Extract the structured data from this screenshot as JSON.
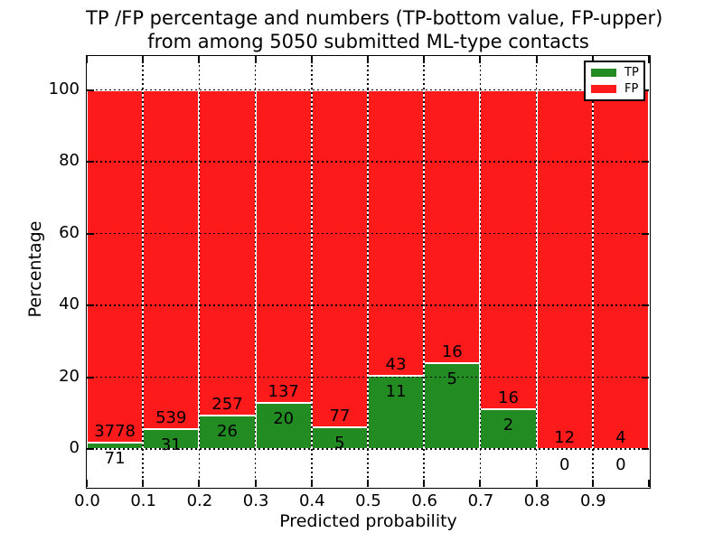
{
  "figure": {
    "title_line1": "TP /FP percentage and numbers (TP-bottom value, FP-upper)",
    "title_line2": "from among 5050 submitted ML-type contacts"
  },
  "chart_data": {
    "type": "bar",
    "stacked": true,
    "normalized_to_percent": true,
    "title": "TP /FP percentage and numbers (TP-bottom value, FP-upper) from among 5050 submitted ML-type contacts",
    "xlabel": "Predicted probability",
    "ylabel": "Percentage",
    "total_submitted": 5050,
    "x_bin_edges": [
      0.0,
      0.1,
      0.2,
      0.3,
      0.4,
      0.5,
      0.6,
      0.7,
      0.8,
      0.9,
      1.0
    ],
    "x_tick_labels": [
      "0.0",
      "0.1",
      "0.2",
      "0.3",
      "0.4",
      "0.5",
      "0.6",
      "0.7",
      "0.8",
      "0.9"
    ],
    "y_ticks": [
      0,
      20,
      40,
      60,
      80,
      100
    ],
    "xlim": [
      0.0,
      1.0
    ],
    "ylim": [
      -10.8,
      109.4
    ],
    "grid": "dotted-black-both-axes",
    "series": [
      {
        "name": "TP",
        "color": "#228b22",
        "counts": [
          71,
          31,
          26,
          20,
          5,
          11,
          5,
          2,
          0,
          0
        ]
      },
      {
        "name": "FP",
        "color": "#fc1a1a",
        "counts": [
          3778,
          539,
          257,
          137,
          77,
          43,
          16,
          16,
          12,
          4
        ]
      }
    ],
    "tp_percent_of_bin": [
      1.84,
      5.44,
      9.19,
      12.74,
      6.1,
      20.37,
      23.81,
      11.11,
      0.0,
      0.0
    ],
    "legend": {
      "position": "upper right",
      "entries": [
        {
          "label": "TP",
          "color": "#228b22"
        },
        {
          "label": "FP",
          "color": "#fc1a1a"
        }
      ]
    }
  }
}
